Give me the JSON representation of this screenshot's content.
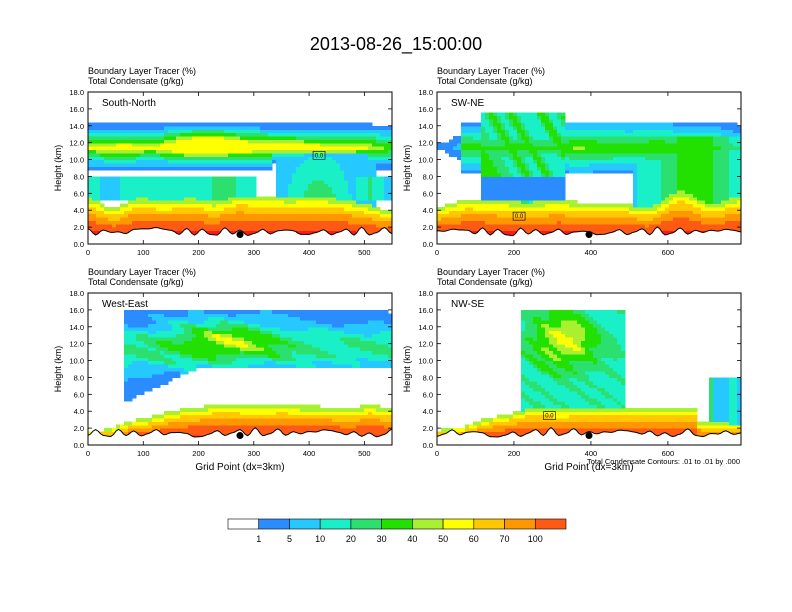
{
  "main_title": "2013-08-26_15:00:00",
  "colors": {
    "bins": [
      "#ffffff",
      "#2b8cff",
      "#25c8ff",
      "#19f0c8",
      "#2ce070",
      "#22e000",
      "#a8f030",
      "#ffff00",
      "#ffc800",
      "#ff9800",
      "#ff5a14",
      "#ff1a1a"
    ]
  },
  "colorbar": {
    "labels": [
      "1",
      "5",
      "10",
      "20",
      "30",
      "40",
      "50",
      "60",
      "70",
      "100"
    ]
  },
  "contour_note": "Total Condensate Contours: .01 to .01 by .000",
  "chart_data": [
    {
      "type": "heatmap",
      "panel_label": "South-North",
      "title_line1": "Boundary Layer Tracer   (%)",
      "title_line2": "Total Condensate   (g/kg)",
      "ylabel": "Height (km)",
      "xlabel": "",
      "xlim": [
        0,
        550
      ],
      "ylim": [
        0,
        18
      ],
      "x_ticks": [
        "0",
        "100",
        "200",
        "300",
        "400",
        "500"
      ],
      "y_ticks": [
        "0.0",
        "2.0",
        "4.0",
        "6.0",
        "8.0",
        "10.0",
        "12.0",
        "14.0",
        "16.0",
        "18.0"
      ],
      "contour_label": "0.0",
      "marker_x": 275,
      "marker_y": 1.0
    },
    {
      "type": "heatmap",
      "panel_label": "SW-NE",
      "title_line1": "Boundary Layer Tracer   (%)",
      "title_line2": "Total Condensate   (g/kg)",
      "ylabel": "Height (km)",
      "xlabel": "",
      "xlim": [
        0,
        790
      ],
      "ylim": [
        0,
        18
      ],
      "x_ticks": [
        "0",
        "200",
        "400",
        "600"
      ],
      "y_ticks": [
        "0.0",
        "2.0",
        "4.0",
        "6.0",
        "8.0",
        "10.0",
        "12.0",
        "14.0",
        "16.0",
        "18.0"
      ],
      "contour_label": "0.0",
      "marker_x": 395,
      "marker_y": 1.0
    },
    {
      "type": "heatmap",
      "panel_label": "West-East",
      "title_line1": "Boundary Layer Tracer   (%)",
      "title_line2": "Total Condensate   (g/kg)",
      "ylabel": "Height (km)",
      "xlabel": "Grid Point (dx=3km)",
      "xlim": [
        0,
        550
      ],
      "ylim": [
        0,
        18
      ],
      "x_ticks": [
        "0",
        "100",
        "200",
        "300",
        "400",
        "500"
      ],
      "y_ticks": [
        "0.0",
        "2.0",
        "4.0",
        "6.0",
        "8.0",
        "10.0",
        "12.0",
        "14.0",
        "16.0",
        "18.0"
      ],
      "contour_label": "",
      "marker_x": 275,
      "marker_y": 1.0
    },
    {
      "type": "heatmap",
      "panel_label": "NW-SE",
      "title_line1": "Boundary Layer Tracer   (%)",
      "title_line2": "Total Condensate   (g/kg)",
      "ylabel": "Height (km)",
      "xlabel": "Grid Point (dx=3km)",
      "xlim": [
        0,
        790
      ],
      "ylim": [
        0,
        18
      ],
      "x_ticks": [
        "0",
        "200",
        "400",
        "600"
      ],
      "y_ticks": [
        "0.0",
        "2.0",
        "4.0",
        "6.0",
        "8.0",
        "10.0",
        "12.0",
        "14.0",
        "16.0",
        "18.0"
      ],
      "contour_label": "0.0",
      "marker_x": 395,
      "marker_y": 1.0
    }
  ]
}
